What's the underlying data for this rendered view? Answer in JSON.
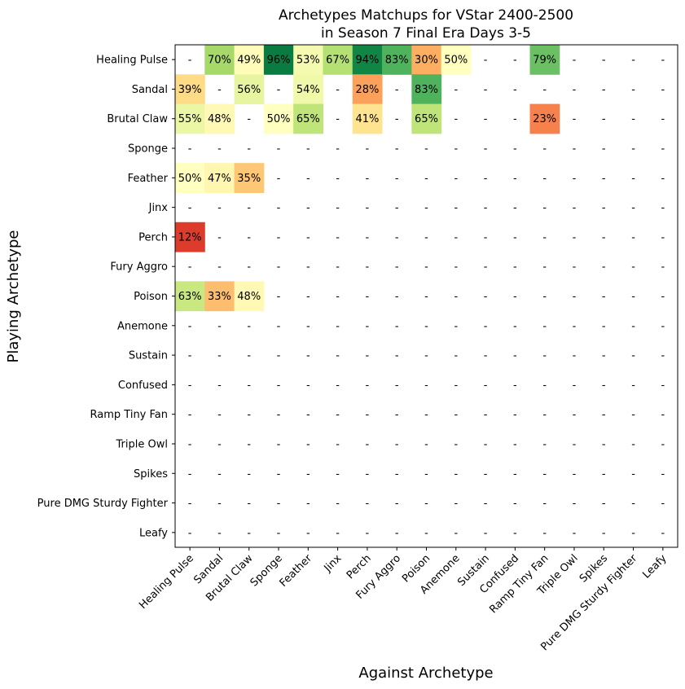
{
  "chart_data": {
    "type": "heatmap",
    "title": "Archetypes Matchups for VStar 2400-2500\nin Season 7 Final Era Days 3-5",
    "xlabel": "Against Archetype",
    "ylabel": "Playing Archetype",
    "rows": [
      "Healing Pulse",
      "Sandal",
      "Brutal Claw",
      "Sponge",
      "Feather",
      "Jinx",
      "Perch",
      "Fury Aggro",
      "Poison",
      "Anemone",
      "Sustain",
      "Confused",
      "Ramp Tiny Fan",
      "Triple Owl",
      "Spikes",
      "Pure DMG Sturdy Fighter",
      "Leafy"
    ],
    "cols": [
      "Healing Pulse",
      "Sandal",
      "Brutal Claw",
      "Sponge",
      "Feather",
      "Jinx",
      "Perch",
      "Fury Aggro",
      "Poison",
      "Anemone",
      "Sustain",
      "Confused",
      "Ramp Tiny Fan",
      "Triple Owl",
      "Spikes",
      "Pure DMG Sturdy Fighter",
      "Leafy"
    ],
    "missing_label": "-",
    "unit": "%",
    "colormap": "RdYlGn",
    "range": [
      0,
      100
    ],
    "cells": [
      {
        "row": "Healing Pulse",
        "col": "Sandal",
        "value": 70
      },
      {
        "row": "Healing Pulse",
        "col": "Brutal Claw",
        "value": 49
      },
      {
        "row": "Healing Pulse",
        "col": "Sponge",
        "value": 96
      },
      {
        "row": "Healing Pulse",
        "col": "Feather",
        "value": 53
      },
      {
        "row": "Healing Pulse",
        "col": "Jinx",
        "value": 67
      },
      {
        "row": "Healing Pulse",
        "col": "Perch",
        "value": 94
      },
      {
        "row": "Healing Pulse",
        "col": "Fury Aggro",
        "value": 83
      },
      {
        "row": "Healing Pulse",
        "col": "Poison",
        "value": 30
      },
      {
        "row": "Healing Pulse",
        "col": "Anemone",
        "value": 50
      },
      {
        "row": "Healing Pulse",
        "col": "Ramp Tiny Fan",
        "value": 79
      },
      {
        "row": "Sandal",
        "col": "Healing Pulse",
        "value": 39
      },
      {
        "row": "Sandal",
        "col": "Brutal Claw",
        "value": 56
      },
      {
        "row": "Sandal",
        "col": "Feather",
        "value": 54
      },
      {
        "row": "Sandal",
        "col": "Perch",
        "value": 28
      },
      {
        "row": "Sandal",
        "col": "Poison",
        "value": 83
      },
      {
        "row": "Brutal Claw",
        "col": "Healing Pulse",
        "value": 55
      },
      {
        "row": "Brutal Claw",
        "col": "Sandal",
        "value": 48
      },
      {
        "row": "Brutal Claw",
        "col": "Sponge",
        "value": 50
      },
      {
        "row": "Brutal Claw",
        "col": "Feather",
        "value": 65
      },
      {
        "row": "Brutal Claw",
        "col": "Perch",
        "value": 41
      },
      {
        "row": "Brutal Claw",
        "col": "Poison",
        "value": 65
      },
      {
        "row": "Brutal Claw",
        "col": "Ramp Tiny Fan",
        "value": 23
      },
      {
        "row": "Feather",
        "col": "Healing Pulse",
        "value": 50
      },
      {
        "row": "Feather",
        "col": "Sandal",
        "value": 47
      },
      {
        "row": "Feather",
        "col": "Brutal Claw",
        "value": 35
      },
      {
        "row": "Perch",
        "col": "Healing Pulse",
        "value": 12
      },
      {
        "row": "Poison",
        "col": "Healing Pulse",
        "value": 63
      },
      {
        "row": "Poison",
        "col": "Sandal",
        "value": 33
      },
      {
        "row": "Poison",
        "col": "Brutal Claw",
        "value": 48
      }
    ],
    "colored_without_label": [
      {
        "row": "Sandal",
        "col": "Feather"
      },
      {
        "row": "Brutal Claw",
        "col": "Feather"
      }
    ]
  }
}
